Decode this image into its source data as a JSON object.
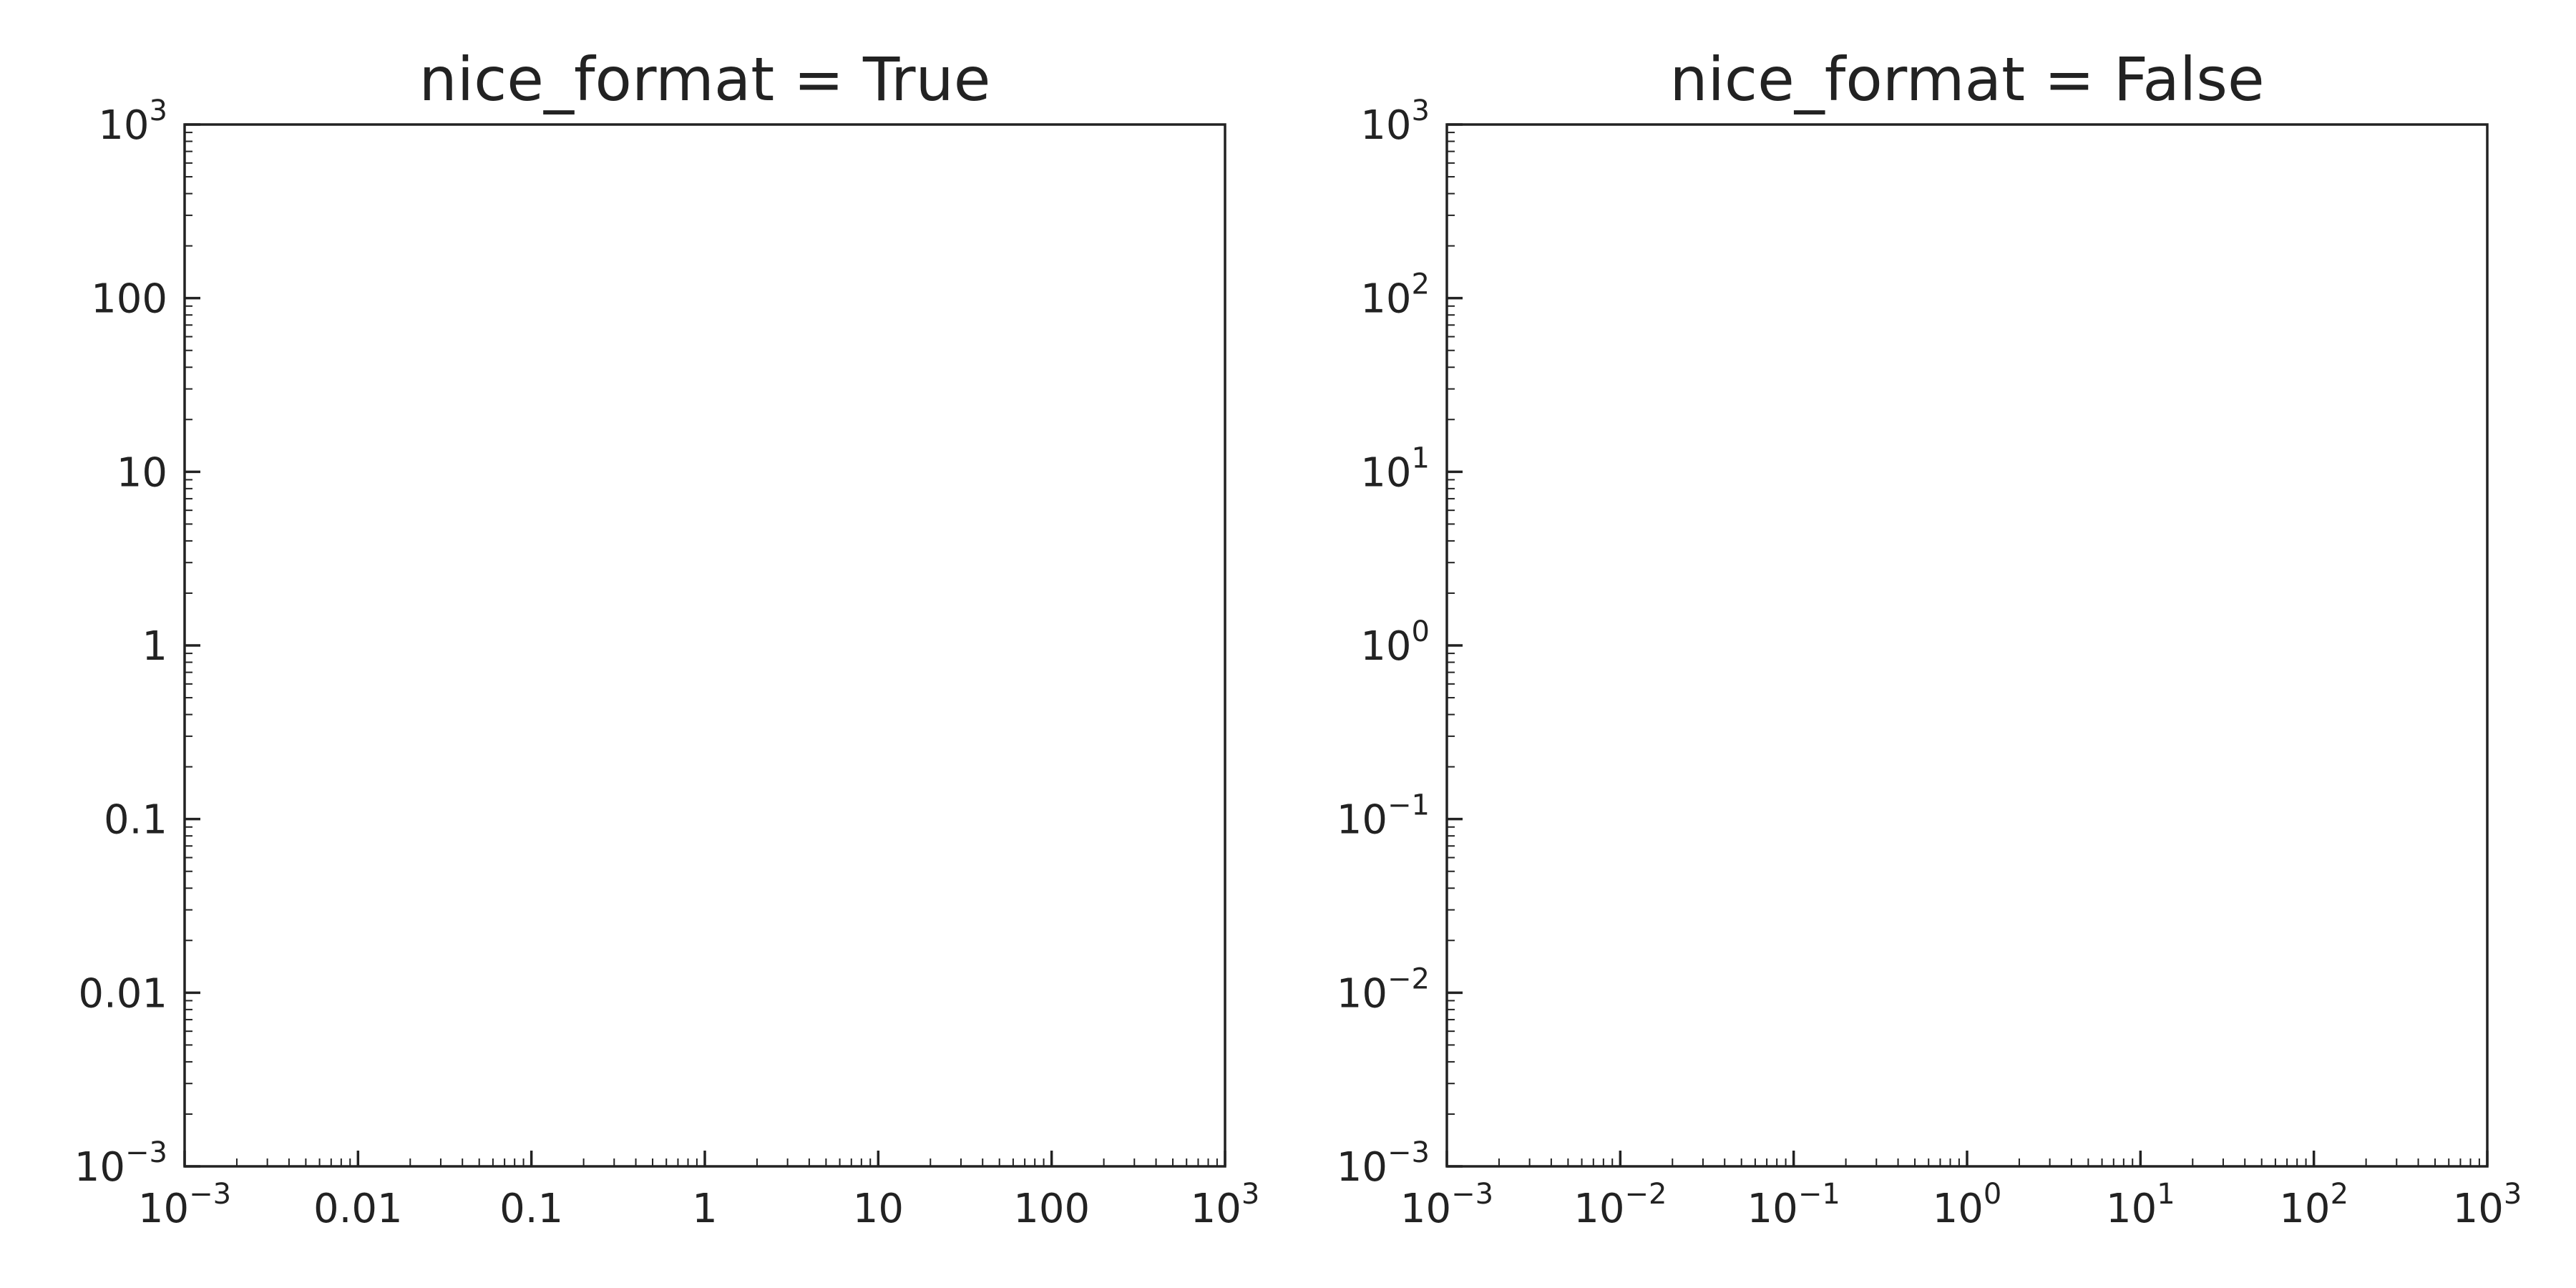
{
  "chart_data": [
    {
      "type": "line",
      "title": "nice_format = True",
      "xscale": "log",
      "yscale": "log",
      "xlim": [
        0.001,
        1000
      ],
      "ylim": [
        0.001,
        1000
      ],
      "grid": false,
      "series": [],
      "xticks": [
        {
          "value": 0.001,
          "mantissa": "10",
          "exponent": "−3"
        },
        {
          "value": 0.01,
          "text": "0.01"
        },
        {
          "value": 0.1,
          "text": "0.1"
        },
        {
          "value": 1,
          "text": "1"
        },
        {
          "value": 10,
          "text": "10"
        },
        {
          "value": 100,
          "text": "100"
        },
        {
          "value": 1000,
          "mantissa": "10",
          "exponent": "3"
        }
      ],
      "yticks": [
        {
          "value": 0.001,
          "mantissa": "10",
          "exponent": "−3"
        },
        {
          "value": 0.01,
          "text": "0.01"
        },
        {
          "value": 0.1,
          "text": "0.1"
        },
        {
          "value": 1,
          "text": "1"
        },
        {
          "value": 10,
          "text": "10"
        },
        {
          "value": 100,
          "text": "100"
        },
        {
          "value": 1000,
          "mantissa": "10",
          "exponent": "3"
        }
      ]
    },
    {
      "type": "line",
      "title": "nice_format = False",
      "xscale": "log",
      "yscale": "log",
      "xlim": [
        0.001,
        1000
      ],
      "ylim": [
        0.001,
        1000
      ],
      "grid": false,
      "series": [],
      "xticks": [
        {
          "value": 0.001,
          "mantissa": "10",
          "exponent": "−3"
        },
        {
          "value": 0.01,
          "mantissa": "10",
          "exponent": "−2"
        },
        {
          "value": 0.1,
          "mantissa": "10",
          "exponent": "−1"
        },
        {
          "value": 1,
          "mantissa": "10",
          "exponent": "0"
        },
        {
          "value": 10,
          "mantissa": "10",
          "exponent": "1"
        },
        {
          "value": 100,
          "mantissa": "10",
          "exponent": "2"
        },
        {
          "value": 1000,
          "mantissa": "10",
          "exponent": "3"
        }
      ],
      "yticks": [
        {
          "value": 0.001,
          "mantissa": "10",
          "exponent": "−3"
        },
        {
          "value": 0.01,
          "mantissa": "10",
          "exponent": "−2"
        },
        {
          "value": 0.1,
          "mantissa": "10",
          "exponent": "−1"
        },
        {
          "value": 1,
          "mantissa": "10",
          "exponent": "0"
        },
        {
          "value": 10,
          "mantissa": "10",
          "exponent": "1"
        },
        {
          "value": 100,
          "mantissa": "10",
          "exponent": "2"
        },
        {
          "value": 1000,
          "mantissa": "10",
          "exponent": "3"
        }
      ]
    }
  ],
  "colors": {
    "axis": "#222222",
    "text": "#222222",
    "background": "#ffffff"
  }
}
